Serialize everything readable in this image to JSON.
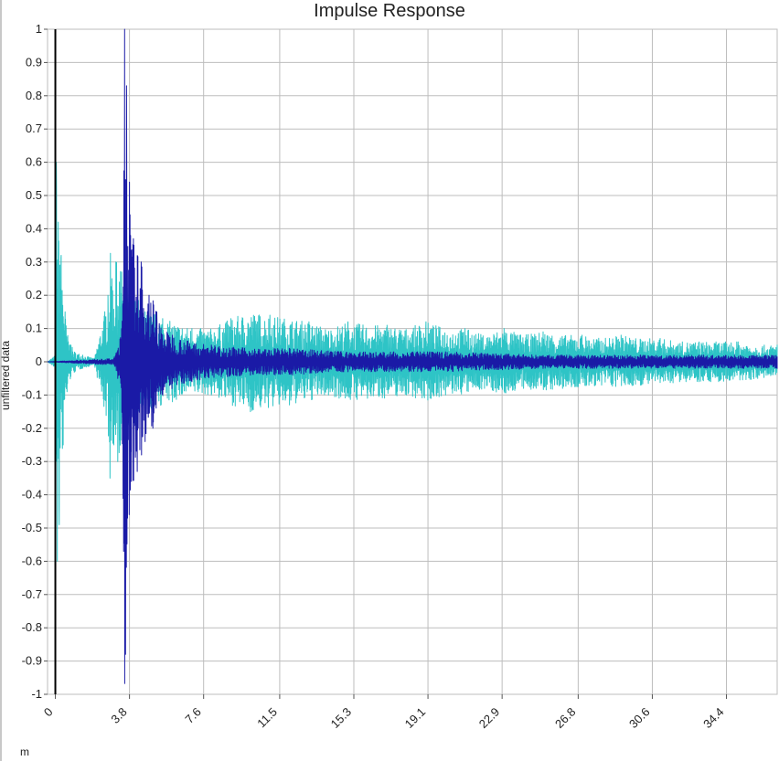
{
  "chart_data": {
    "type": "line",
    "title": "Impulse Response",
    "ylabel": "unfiltered data",
    "xlabel": "m",
    "ylim": [
      -1,
      1
    ],
    "xlim": [
      -0.4,
      37.0
    ],
    "y_ticks": [
      "1",
      "0.9",
      "0.8",
      "0.7",
      "0.6",
      "0.5",
      "0.4",
      "0.3",
      "0.2",
      "0.1",
      "0",
      "-0.1",
      "-0.2",
      "-0.3",
      "-0.4",
      "-0.5",
      "-0.6",
      "-0.7",
      "-0.8",
      "-0.9",
      "-1"
    ],
    "x_ticks": [
      "0",
      "3.8",
      "7.6",
      "11.5",
      "15.3",
      "19.1",
      "22.9",
      "26.8",
      "30.6",
      "34.4"
    ],
    "grid": true,
    "colors": {
      "series_cyan": "#2ec4c6",
      "series_navy": "#1a1aa6",
      "marker_line": "#000000",
      "grid": "#bdbdbd",
      "zero_line": "#7a7a7a"
    },
    "series": [
      {
        "color": "#2ec4c6",
        "x": [
          -0.4,
          0.0,
          0.05,
          0.1,
          0.15,
          0.2,
          0.3,
          0.4,
          0.5,
          0.6,
          0.8,
          1.0,
          1.4,
          2.0,
          2.7,
          2.8,
          2.9,
          3.0,
          3.1,
          3.2,
          3.4,
          3.6,
          3.8,
          4.2,
          4.6,
          5.0,
          5.5,
          6.0,
          7.0,
          8.0,
          9.0,
          10.0,
          11.0,
          12.0,
          13.0,
          14.0,
          15.0,
          16.0,
          17.0,
          18.0,
          19.0,
          20.0,
          21.0,
          22.0,
          23.0,
          24.0,
          25.0,
          26.0,
          27.0,
          28.0,
          29.0,
          30.0,
          31.0,
          32.0,
          33.0,
          34.0,
          35.0,
          36.0,
          37.0
        ],
        "values": [
          0.0,
          0.02,
          0.6,
          -0.6,
          0.42,
          -0.49,
          0.32,
          -0.25,
          0.15,
          -0.09,
          0.05,
          -0.03,
          0.02,
          0.01,
          0.2,
          -0.35,
          0.25,
          -0.25,
          0.3,
          -0.3,
          0.27,
          -0.27,
          0.2,
          -0.2,
          0.15,
          -0.15,
          0.13,
          -0.12,
          0.1,
          -0.1,
          0.13,
          -0.15,
          0.14,
          -0.13,
          0.12,
          -0.1,
          0.12,
          -0.11,
          0.11,
          -0.1,
          0.12,
          -0.1,
          0.1,
          -0.08,
          0.1,
          -0.08,
          0.09,
          -0.08,
          0.08,
          -0.07,
          0.08,
          -0.07,
          0.07,
          -0.06,
          0.06,
          -0.06,
          0.06,
          -0.05,
          0.05
        ]
      },
      {
        "color": "#1a1aa6",
        "x": [
          -0.4,
          3.0,
          3.2,
          3.4,
          3.5,
          3.55,
          3.6,
          3.65,
          3.7,
          3.8,
          3.9,
          4.0,
          4.2,
          4.4,
          4.6,
          4.8,
          5.0,
          5.2,
          5.5,
          6.0,
          7.0,
          8.0,
          10.0,
          12.0,
          15.0,
          20.0,
          25.0,
          30.0,
          37.0
        ],
        "values": [
          0.0,
          0.01,
          -0.05,
          0.1,
          -0.57,
          1.0,
          -0.88,
          0.83,
          -0.47,
          0.54,
          -0.36,
          0.37,
          -0.33,
          0.3,
          -0.24,
          0.2,
          -0.2,
          0.15,
          -0.1,
          0.08,
          -0.06,
          0.05,
          -0.04,
          0.04,
          -0.03,
          0.03,
          -0.02,
          0.02,
          -0.02
        ]
      }
    ]
  }
}
